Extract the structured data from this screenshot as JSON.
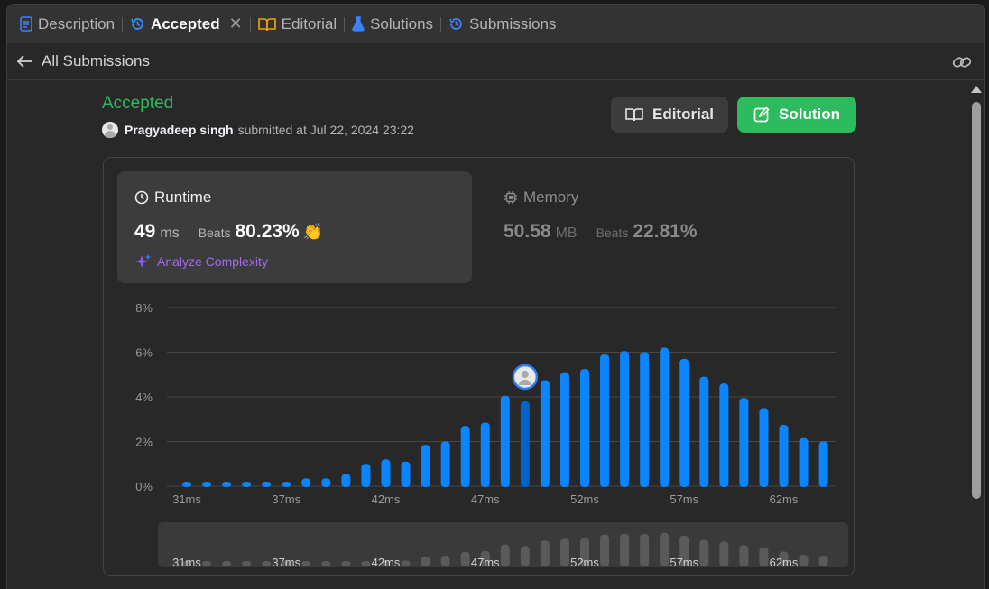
{
  "tabs": [
    {
      "label": "Description",
      "icon": "description-icon",
      "active": false
    },
    {
      "label": "Accepted",
      "icon": "history-icon",
      "active": true,
      "closable": true
    },
    {
      "label": "Editorial",
      "icon": "book-icon",
      "active": false
    },
    {
      "label": "Solutions",
      "icon": "flask-icon",
      "active": false
    },
    {
      "label": "Submissions",
      "icon": "history-icon",
      "active": false
    }
  ],
  "subheader": {
    "back_label": "All Submissions"
  },
  "submission": {
    "status": "Accepted",
    "username": "Pragyadeep singh",
    "submitted_text": "submitted at Jul 22, 2024 23:22"
  },
  "buttons": {
    "editorial": "Editorial",
    "solution": "Solution"
  },
  "runtime": {
    "label": "Runtime",
    "value": "49",
    "unit": "ms",
    "beats_label": "Beats",
    "beats": "80.23%",
    "analyze": "Analyze Complexity"
  },
  "memory": {
    "label": "Memory",
    "value": "50.58",
    "unit": "MB",
    "beats_label": "Beats",
    "beats": "22.81%"
  },
  "colors": {
    "accent_green": "#2cbb5d",
    "bar_blue": "#0a84ff",
    "bar_highlight": "#0063c7",
    "analyze_purple": "#a46ae8"
  },
  "chart_data": {
    "type": "bar",
    "x_start_ms": 31,
    "values": [
      0.2,
      0.2,
      0.2,
      0.2,
      0.2,
      0.2,
      0.35,
      0.35,
      0.55,
      1.0,
      1.2,
      1.1,
      1.85,
      2.0,
      2.7,
      2.85,
      4.05,
      3.8,
      4.75,
      5.1,
      5.25,
      5.9,
      6.05,
      6.0,
      6.2,
      5.7,
      4.9,
      4.6,
      3.95,
      3.5,
      2.75,
      2.15,
      2.0
    ],
    "highlight_index": 17,
    "y_ticks": [
      "0%",
      "2%",
      "4%",
      "6%",
      "8%"
    ],
    "ylim": [
      0,
      8
    ],
    "x_ticks": [
      {
        "index": 0,
        "label": "31ms"
      },
      {
        "index": 5,
        "label": "37ms"
      },
      {
        "index": 10,
        "label": "42ms"
      },
      {
        "index": 15,
        "label": "47ms"
      },
      {
        "index": 20,
        "label": "52ms"
      },
      {
        "index": 25,
        "label": "57ms"
      },
      {
        "index": 30,
        "label": "62ms"
      }
    ],
    "grid": true
  }
}
